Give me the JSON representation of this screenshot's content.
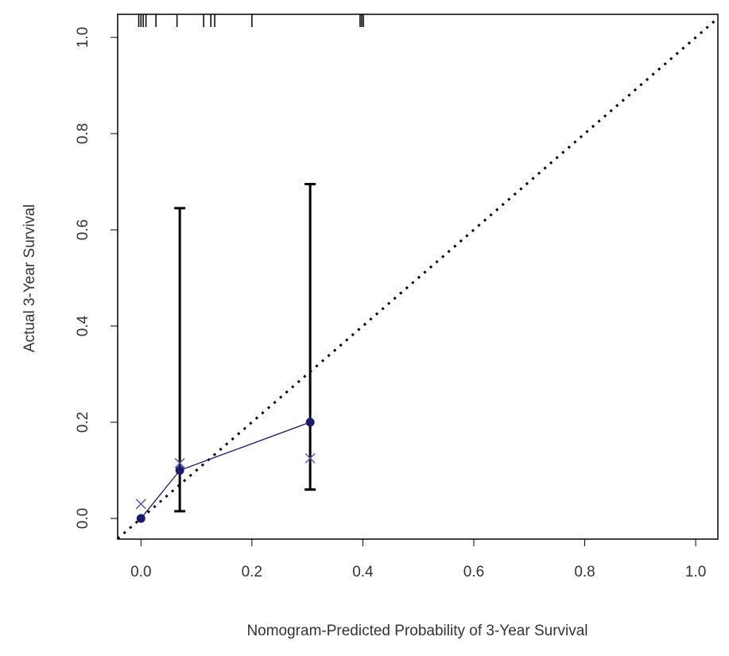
{
  "chart_data": {
    "type": "scatter",
    "x_label": "Nomogram-Predicted Probability of 3-Year Survival",
    "y_label": "Actual 3-Year Survival",
    "xlim": [
      -0.042,
      1.04
    ],
    "ylim": [
      -0.043,
      1.048
    ],
    "xticks": [
      {
        "value": 0,
        "label": "0.0"
      },
      {
        "value": 0.2,
        "label": "0.2"
      },
      {
        "value": 0.4,
        "label": "0.4"
      },
      {
        "value": 0.6,
        "label": "0.6"
      },
      {
        "value": 0.8,
        "label": "0.8"
      },
      {
        "value": 1,
        "label": "1.0"
      }
    ],
    "yticks": [
      {
        "value": 0,
        "label": "0.0"
      },
      {
        "value": 0.2,
        "label": "0.2"
      },
      {
        "value": 0.4,
        "label": "0.4"
      },
      {
        "value": 0.6,
        "label": "0.6"
      },
      {
        "value": 0.8,
        "label": "0.8"
      },
      {
        "value": 1,
        "label": "1.0"
      }
    ],
    "series": [
      {
        "color": "#1a1a6e",
        "marker": "circle",
        "x": [
          0,
          0.07,
          0.305
        ],
        "values": [
          0,
          0.1,
          0.2
        ],
        "lower": [
          null,
          0.015,
          0.06
        ],
        "upper": [
          null,
          0.645,
          0.695
        ]
      },
      {
        "color": "#5a5aa8",
        "marker": "x",
        "x": [
          0,
          0.07,
          0.305
        ],
        "values": [
          0.03,
          0.115,
          0.125
        ]
      }
    ],
    "rug": [
      -0.004,
      0,
      0.004,
      0.009,
      0.027,
      0.065,
      0.113,
      0.126,
      0.133,
      0.2,
      0.395,
      0.398,
      0.401
    ]
  }
}
